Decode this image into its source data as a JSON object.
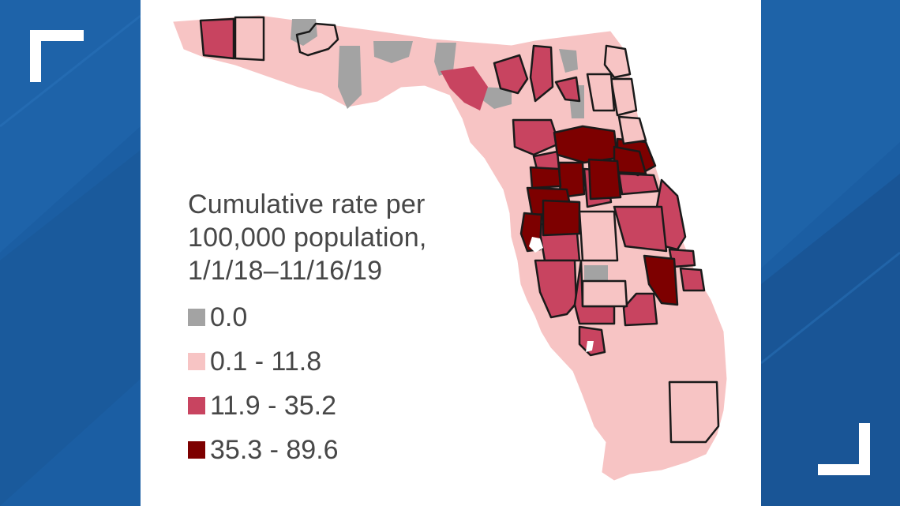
{
  "legend": {
    "title_lines": [
      "Cumulative rate per",
      "100,000 population,",
      "1/1/18–11/16/19"
    ],
    "classes": [
      {
        "label": "0.0",
        "color": "#a3a3a3"
      },
      {
        "label": "0.1 - 11.8",
        "color": "#f7c4c4"
      },
      {
        "label": "11.9 - 35.2",
        "color": "#c84460"
      },
      {
        "label": "35.3 - 89.6",
        "color": "#7d0000"
      }
    ]
  },
  "map": {
    "subject": "florida-counties",
    "background_color": "#ffffff",
    "border_color": "#1a1a1a"
  },
  "broadcast_frame": {
    "background_color": "#1b5ea3",
    "bracket_color": "#ffffff",
    "bracket_icons": [
      "top-left-bracket-icon",
      "bottom-right-bracket-icon"
    ]
  }
}
